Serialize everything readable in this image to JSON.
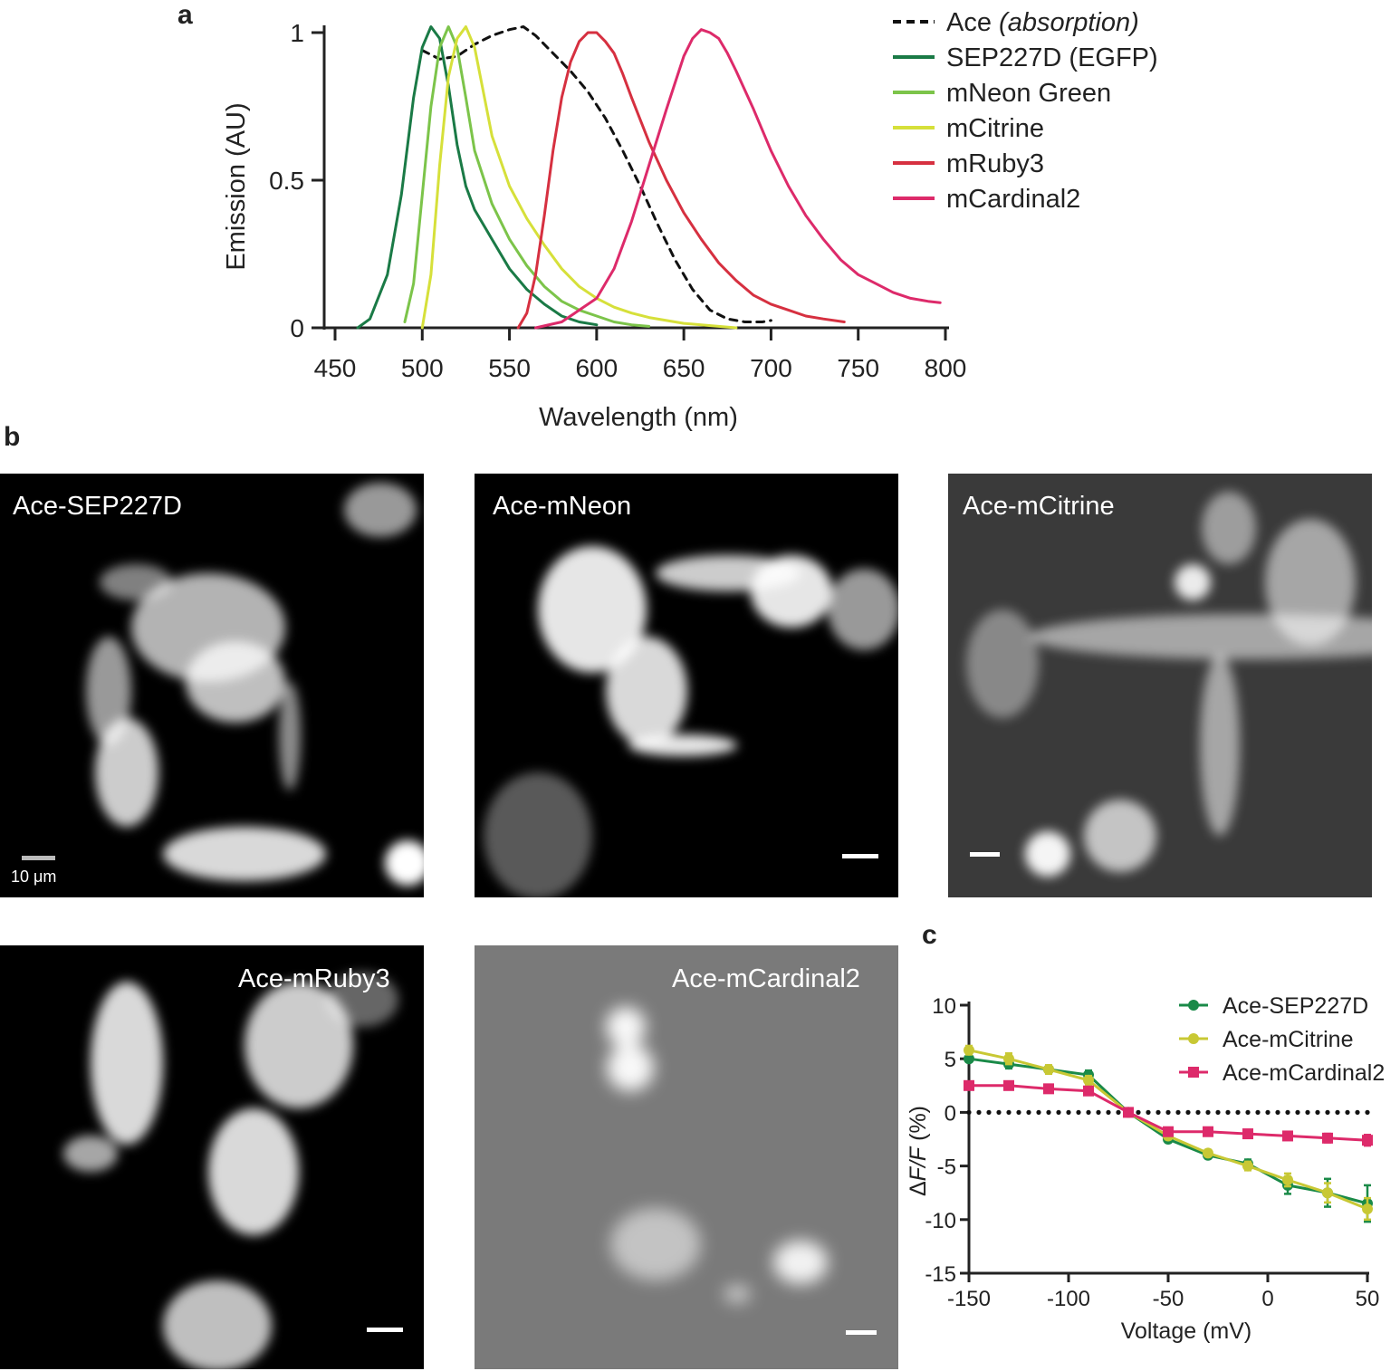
{
  "panels": {
    "a": "a",
    "b": "b",
    "c": "c"
  },
  "chart_a": {
    "type": "line",
    "xlabel": "Wavelength (nm)",
    "ylabel": "Emission (AU)",
    "xlim": [
      450,
      800
    ],
    "ylim": [
      0,
      1
    ],
    "xticks": [
      "450",
      "500",
      "550",
      "600",
      "650",
      "700",
      "750",
      "800"
    ],
    "yticks": [
      "0",
      "0.5",
      "1"
    ],
    "legend": [
      {
        "name_main": "Ace",
        "name_italic": "(absorption)",
        "color": "#111111",
        "dashed": true
      },
      {
        "name_main": "SEP227D (EGFP)",
        "name_italic": "",
        "color": "#1a7a46",
        "dashed": false
      },
      {
        "name_main": "mNeon Green",
        "name_italic": "",
        "color": "#7cc44a",
        "dashed": false
      },
      {
        "name_main": "mCitrine",
        "name_italic": "",
        "color": "#d6e03a",
        "dashed": false
      },
      {
        "name_main": "mRuby3",
        "name_italic": "",
        "color": "#d63040",
        "dashed": false
      },
      {
        "name_main": "mCardinal2",
        "name_italic": "",
        "color": "#dd2a6a",
        "dashed": false
      }
    ]
  },
  "chart_data": [
    {
      "type": "line",
      "xlabel": "Wavelength (nm)",
      "ylabel": "Emission (AU)",
      "xlim": [
        450,
        800
      ],
      "ylim": [
        0,
        1
      ],
      "series": [
        {
          "name": "Ace (absorption)",
          "x": [
            500,
            510,
            520,
            530,
            540,
            550,
            558,
            565,
            575,
            585,
            595,
            605,
            615,
            625,
            635,
            645,
            655,
            665,
            675,
            685,
            695,
            700
          ],
          "values": [
            0.94,
            0.91,
            0.92,
            0.96,
            0.99,
            1.01,
            1.02,
            0.99,
            0.93,
            0.87,
            0.8,
            0.71,
            0.6,
            0.48,
            0.35,
            0.23,
            0.13,
            0.06,
            0.03,
            0.02,
            0.02,
            0.025
          ]
        },
        {
          "name": "SEP227D (EGFP)",
          "x": [
            463,
            470,
            480,
            488,
            495,
            500,
            505,
            510,
            515,
            520,
            525,
            530,
            540,
            550,
            560,
            570,
            580,
            590,
            600
          ],
          "values": [
            0.0,
            0.03,
            0.18,
            0.45,
            0.78,
            0.95,
            1.02,
            0.98,
            0.82,
            0.62,
            0.48,
            0.4,
            0.3,
            0.2,
            0.13,
            0.08,
            0.04,
            0.02,
            0.01
          ]
        },
        {
          "name": "mNeon Green",
          "x": [
            490,
            495,
            500,
            505,
            510,
            515,
            520,
            525,
            530,
            540,
            550,
            560,
            570,
            580,
            590,
            600,
            610,
            620,
            630
          ],
          "values": [
            0.02,
            0.15,
            0.45,
            0.75,
            0.95,
            1.02,
            0.95,
            0.78,
            0.6,
            0.42,
            0.3,
            0.21,
            0.14,
            0.09,
            0.06,
            0.04,
            0.02,
            0.01,
            0.005
          ]
        },
        {
          "name": "mCitrine",
          "x": [
            500,
            505,
            510,
            515,
            520,
            525,
            530,
            535,
            540,
            550,
            560,
            570,
            580,
            590,
            600,
            610,
            620,
            630,
            640,
            650,
            660,
            680
          ],
          "values": [
            0.0,
            0.18,
            0.55,
            0.85,
            0.98,
            1.02,
            0.95,
            0.8,
            0.65,
            0.48,
            0.37,
            0.28,
            0.2,
            0.14,
            0.1,
            0.07,
            0.05,
            0.035,
            0.025,
            0.015,
            0.01,
            0.0
          ]
        },
        {
          "name": "mRuby3",
          "x": [
            555,
            560,
            565,
            570,
            575,
            580,
            585,
            590,
            595,
            600,
            605,
            610,
            615,
            620,
            630,
            640,
            650,
            660,
            670,
            680,
            690,
            700,
            710,
            720,
            730,
            742
          ],
          "values": [
            0.0,
            0.05,
            0.18,
            0.38,
            0.6,
            0.78,
            0.9,
            0.97,
            1.0,
            1.0,
            0.97,
            0.93,
            0.86,
            0.78,
            0.63,
            0.5,
            0.39,
            0.3,
            0.22,
            0.16,
            0.11,
            0.08,
            0.06,
            0.04,
            0.03,
            0.02
          ]
        },
        {
          "name": "mCardinal2",
          "x": [
            565,
            580,
            600,
            610,
            620,
            630,
            640,
            645,
            650,
            655,
            660,
            665,
            670,
            675,
            680,
            690,
            700,
            710,
            720,
            730,
            740,
            750,
            760,
            770,
            780,
            790,
            797
          ],
          "values": [
            0.0,
            0.02,
            0.1,
            0.2,
            0.36,
            0.55,
            0.74,
            0.83,
            0.92,
            0.98,
            1.01,
            1.0,
            0.98,
            0.93,
            0.87,
            0.74,
            0.6,
            0.48,
            0.38,
            0.3,
            0.23,
            0.18,
            0.15,
            0.12,
            0.1,
            0.09,
            0.085
          ]
        }
      ]
    },
    {
      "type": "line",
      "xlabel": "Voltage (mV)",
      "ylabel": "ΔF/F (%)",
      "xlim": [
        -150,
        50
      ],
      "ylim": [
        -15,
        10
      ],
      "x": [
        -150,
        -130,
        -110,
        -90,
        -70,
        -50,
        -30,
        -10,
        10,
        30,
        50
      ],
      "series": [
        {
          "name": "Ace-SEP227D",
          "values": [
            5.0,
            4.5,
            4.0,
            3.5,
            0.0,
            -2.5,
            -4.0,
            -4.8,
            -6.8,
            -7.5,
            -8.5
          ],
          "err": [
            0.3,
            0.4,
            0.3,
            0.4,
            0.2,
            0.3,
            0.3,
            0.4,
            0.8,
            1.3,
            1.7
          ]
        },
        {
          "name": "Ace-mCitrine",
          "values": [
            5.8,
            5.0,
            4.0,
            3.0,
            0.0,
            -2.2,
            -3.8,
            -5.0,
            -6.3,
            -7.5,
            -9.0
          ],
          "err": [
            0.4,
            0.5,
            0.4,
            0.4,
            0.2,
            0.3,
            0.3,
            0.4,
            0.6,
            0.9,
            1.0
          ]
        },
        {
          "name": "Ace-mCardinal2",
          "values": [
            2.5,
            2.5,
            2.2,
            2.0,
            0.0,
            -1.8,
            -1.8,
            -2.0,
            -2.2,
            -2.4,
            -2.6
          ],
          "err": [
            0.3,
            0.3,
            0.3,
            0.3,
            0.2,
            0.3,
            0.3,
            0.3,
            0.3,
            0.4,
            0.5
          ]
        }
      ]
    }
  ],
  "chart_c": {
    "xlabel": "Voltage (mV)",
    "ylabel_delta": "Δ",
    "ylabel_italic": "F/F",
    "ylabel_unit": "(%)",
    "xticks": [
      "-150",
      "-100",
      "-50",
      "0",
      "50"
    ],
    "yticks": [
      "10",
      "5",
      "0",
      "-5",
      "-10",
      "-15"
    ],
    "colors": [
      "#1a8a48",
      "#c8c834",
      "#dd2a6a"
    ],
    "legend": [
      "Ace-SEP227D",
      "Ace-mCitrine",
      "Ace-mCardinal2"
    ]
  },
  "micrographs": [
    {
      "label": "Ace-SEP227D",
      "scale_text": "10 μm",
      "bg": "#000000"
    },
    {
      "label": "Ace-mNeon",
      "scale_text": "",
      "bg": "#000000"
    },
    {
      "label": "Ace-mCitrine",
      "scale_text": "",
      "bg": "#3a3a3a"
    },
    {
      "label": "Ace-mRuby3",
      "scale_text": "",
      "bg": "#000000"
    },
    {
      "label": "Ace-mCardinal2",
      "scale_text": "",
      "bg": "#7a7a7a"
    }
  ]
}
